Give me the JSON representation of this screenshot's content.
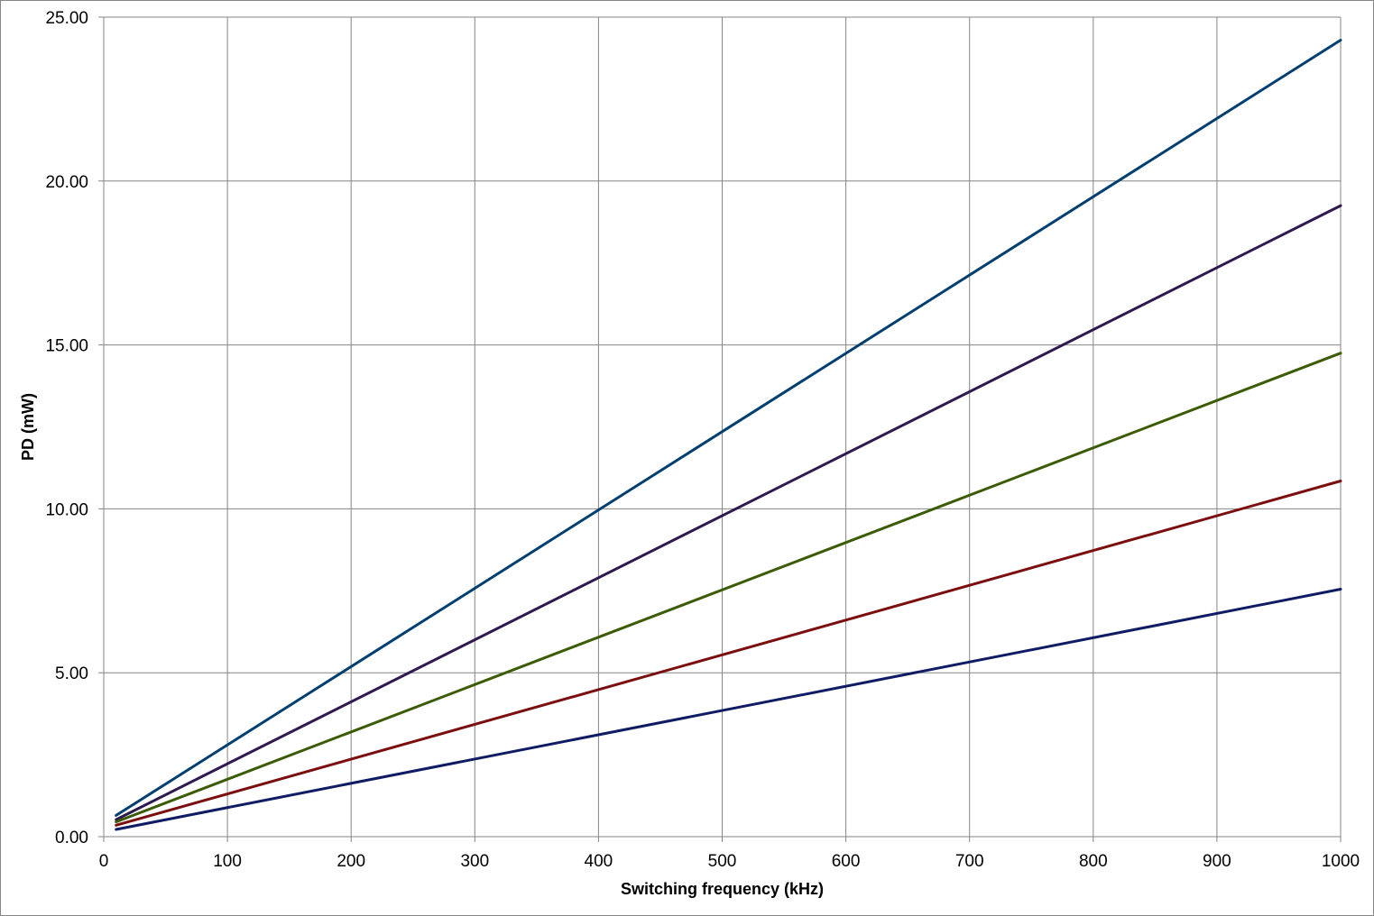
{
  "chart_data": {
    "type": "line",
    "title": "",
    "xlabel": "Switching frequency (kHz)",
    "ylabel": "PD (mW)",
    "xlim": [
      0,
      1000
    ],
    "ylim": [
      0,
      25
    ],
    "x_ticks": [
      "0",
      "100",
      "200",
      "300",
      "400",
      "500",
      "600",
      "700",
      "800",
      "900",
      "1000"
    ],
    "y_ticks": [
      "0.00",
      "5.00",
      "10.00",
      "15.00",
      "20.00",
      "25.00"
    ],
    "grid": true,
    "legend": "none",
    "series": [
      {
        "color": "#003F6F",
        "x": [
          10,
          1000
        ],
        "y": [
          0.65,
          24.3
        ]
      },
      {
        "color": "#2E1A4E",
        "x": [
          10,
          1000
        ],
        "y": [
          0.52,
          19.25
        ]
      },
      {
        "color": "#3B5B04",
        "x": [
          10,
          1000
        ],
        "y": [
          0.45,
          14.75
        ]
      },
      {
        "color": "#7B0F0F",
        "x": [
          10,
          1000
        ],
        "y": [
          0.35,
          10.85
        ]
      },
      {
        "color": "#0F1B63",
        "x": [
          10,
          1000
        ],
        "y": [
          0.22,
          7.55
        ]
      }
    ]
  }
}
